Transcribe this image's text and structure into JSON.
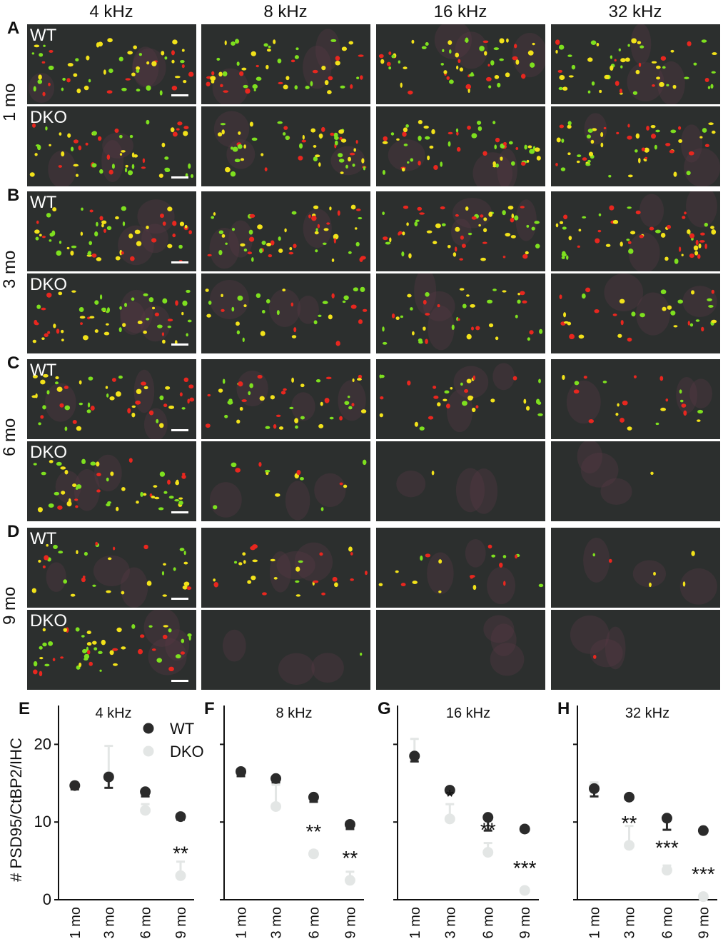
{
  "figure": {
    "frequencies": [
      "4 kHz",
      "8 kHz",
      "16 kHz",
      "32 kHz"
    ],
    "rows": [
      {
        "letter": "A",
        "age": "1 mo"
      },
      {
        "letter": "B",
        "age": "3 mo"
      },
      {
        "letter": "C",
        "age": "6 mo"
      },
      {
        "letter": "D",
        "age": "9 mo"
      }
    ],
    "genotypes": [
      "WT",
      "DKO"
    ],
    "colors": {
      "background": "#2c2f2e",
      "red": "#e8271f",
      "green": "#7ee01f",
      "yellow": "#f2e21a"
    }
  },
  "chart_data": [
    {
      "type": "scatter",
      "letter": "E",
      "title": "4 kHz",
      "ylabel": "# PSD95/CtBP2/IHC",
      "ylim": [
        0,
        25
      ],
      "yticks": [
        0,
        10,
        20
      ],
      "categories": [
        "1 mo",
        "3 mo",
        "6 mo",
        "9 mo"
      ],
      "series": [
        {
          "name": "WT",
          "color": "#2b2b2b",
          "values": [
            14.7,
            15.8,
            13.9,
            10.7
          ],
          "err": [
            0.5,
            1.4,
            0.6,
            0.4
          ]
        },
        {
          "name": "DKO",
          "color": "#e3e6e5",
          "values": [
            14.7,
            15.9,
            11.5,
            3.1
          ],
          "err": [
            0.4,
            3.9,
            0.8,
            1.8
          ]
        }
      ],
      "annotations": [
        {
          "category": "9 mo",
          "text": "**"
        }
      ]
    },
    {
      "type": "scatter",
      "letter": "F",
      "title": "8 kHz",
      "ylim": [
        0,
        25
      ],
      "yticks": [
        0,
        10,
        20
      ],
      "categories": [
        "1 mo",
        "3 mo",
        "6 mo",
        "9 mo"
      ],
      "series": [
        {
          "name": "WT",
          "color": "#2b2b2b",
          "values": [
            16.5,
            15.6,
            13.2,
            9.7
          ],
          "err": [
            0.6,
            0.5,
            0.6,
            0.6
          ]
        },
        {
          "name": "DKO",
          "color": "#e3e6e5",
          "values": [
            16.4,
            12.0,
            5.9,
            2.5
          ],
          "err": [
            0.3,
            2.8,
            0.4,
            1.1
          ]
        }
      ],
      "annotations": [
        {
          "category": "6 mo",
          "text": "**"
        },
        {
          "category": "9 mo",
          "text": "**"
        }
      ]
    },
    {
      "type": "scatter",
      "letter": "G",
      "title": "16 kHz",
      "ylim": [
        0,
        25
      ],
      "yticks": [
        0,
        10,
        20
      ],
      "categories": [
        "1 mo",
        "3 mo",
        "6 mo",
        "9 mo"
      ],
      "series": [
        {
          "name": "WT",
          "color": "#2b2b2b",
          "values": [
            18.5,
            14.1,
            10.6,
            9.1
          ],
          "err": [
            0.7,
            0.3,
            1.7,
            0.3
          ]
        },
        {
          "name": "DKO",
          "color": "#e3e6e5",
          "values": [
            18.5,
            10.4,
            6.1,
            1.2
          ],
          "err": [
            2.2,
            1.9,
            1.2,
            0.3
          ]
        }
      ],
      "annotations": [
        {
          "category": "3 mo",
          "text": "*"
        },
        {
          "category": "6 mo",
          "text": "**"
        },
        {
          "category": "9 mo",
          "text": "***"
        }
      ]
    },
    {
      "type": "scatter",
      "letter": "H",
      "title": "32 kHz",
      "ylim": [
        0,
        25
      ],
      "yticks": [
        0,
        10,
        20
      ],
      "categories": [
        "1 mo",
        "3 mo",
        "6 mo",
        "9 mo"
      ],
      "series": [
        {
          "name": "WT",
          "color": "#2b2b2b",
          "values": [
            14.3,
            13.2,
            10.5,
            8.9
          ],
          "err": [
            1.0,
            0.3,
            1.5,
            0.3
          ]
        },
        {
          "name": "DKO",
          "color": "#e3e6e5",
          "values": [
            14.5,
            7.0,
            3.8,
            0.4
          ],
          "err": [
            0.6,
            2.5,
            0.6,
            0.3
          ]
        }
      ],
      "annotations": [
        {
          "category": "3 mo",
          "text": "**"
        },
        {
          "category": "6 mo",
          "text": "***"
        },
        {
          "category": "9 mo",
          "text": "***"
        }
      ]
    }
  ]
}
